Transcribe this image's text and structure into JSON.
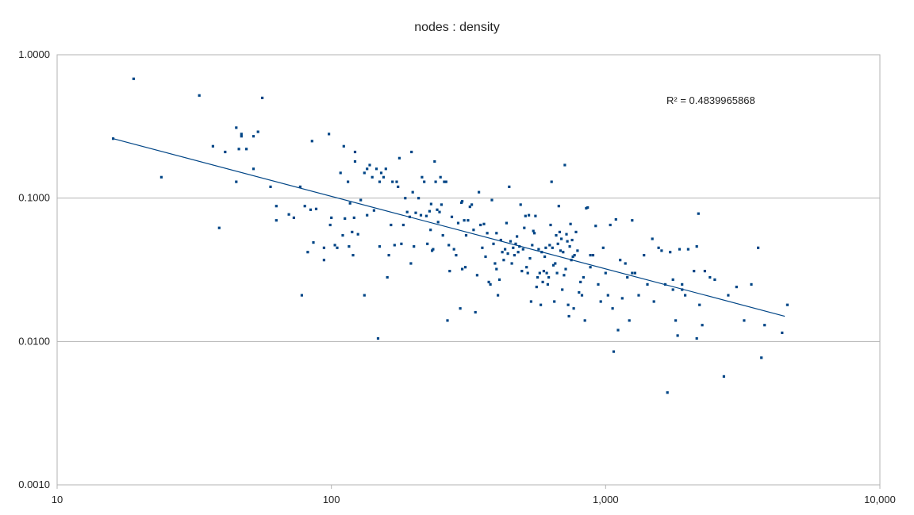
{
  "chart_data": {
    "type": "scatter",
    "title": "nodes : density",
    "xlabel": "",
    "ylabel": "",
    "x_scale": "log",
    "y_scale": "log",
    "xlim": [
      10,
      10000
    ],
    "ylim": [
      0.001,
      1
    ],
    "x_ticks": [
      "10",
      "100",
      "1,000",
      "10,000"
    ],
    "y_ticks": [
      "0.0010",
      "0.0100",
      "0.1000",
      "1.0000"
    ],
    "grid": "horizontal major",
    "marker_color": "#004586",
    "trendline": {
      "type": "power",
      "from": [
        16,
        0.26
      ],
      "to": [
        4500,
        0.015
      ],
      "color": "#004586"
    },
    "r_squared_label": "R² = 0.4839965868",
    "points": [
      [
        16,
        0.26
      ],
      [
        19,
        0.68
      ],
      [
        24,
        0.14
      ],
      [
        33,
        0.52
      ],
      [
        37,
        0.23
      ],
      [
        39,
        0.062
      ],
      [
        41,
        0.21
      ],
      [
        45,
        0.31
      ],
      [
        45,
        0.13
      ],
      [
        46,
        0.22
      ],
      [
        47,
        0.28
      ],
      [
        47,
        0.27
      ],
      [
        49,
        0.22
      ],
      [
        52,
        0.16
      ],
      [
        52,
        0.27
      ],
      [
        54,
        0.29
      ],
      [
        56,
        0.5
      ],
      [
        60,
        0.12
      ],
      [
        63,
        0.088
      ],
      [
        63,
        0.07
      ],
      [
        70,
        0.077
      ],
      [
        73,
        0.073
      ],
      [
        77,
        0.12
      ],
      [
        78,
        0.021
      ],
      [
        80,
        0.088
      ],
      [
        82,
        0.042
      ],
      [
        84,
        0.083
      ],
      [
        85,
        0.25
      ],
      [
        86,
        0.049
      ],
      [
        88,
        0.084
      ],
      [
        94,
        0.045
      ],
      [
        94,
        0.037
      ],
      [
        98,
        0.28
      ],
      [
        99,
        0.065
      ],
      [
        100,
        0.073
      ],
      [
        103,
        0.047
      ],
      [
        105,
        0.045
      ],
      [
        108,
        0.15
      ],
      [
        110,
        0.055
      ],
      [
        111,
        0.23
      ],
      [
        112,
        0.072
      ],
      [
        115,
        0.13
      ],
      [
        116,
        0.046
      ],
      [
        117,
        0.092
      ],
      [
        119,
        0.058
      ],
      [
        120,
        0.04
      ],
      [
        121,
        0.073
      ],
      [
        122,
        0.18
      ],
      [
        122,
        0.21
      ],
      [
        125,
        0.056
      ],
      [
        128,
        0.097
      ],
      [
        132,
        0.021
      ],
      [
        132,
        0.15
      ],
      [
        135,
        0.16
      ],
      [
        135,
        0.076
      ],
      [
        138,
        0.17
      ],
      [
        141,
        0.14
      ],
      [
        143,
        0.082
      ],
      [
        146,
        0.16
      ],
      [
        148,
        0.0105
      ],
      [
        150,
        0.13
      ],
      [
        152,
        0.15
      ],
      [
        155,
        0.14
      ],
      [
        158,
        0.16
      ],
      [
        160,
        0.028
      ],
      [
        162,
        0.04
      ],
      [
        165,
        0.065
      ],
      [
        167,
        0.13
      ],
      [
        170,
        0.047
      ],
      [
        173,
        0.13
      ],
      [
        175,
        0.12
      ],
      [
        177,
        0.19
      ],
      [
        180,
        0.048
      ],
      [
        183,
        0.065
      ],
      [
        186,
        0.1
      ],
      [
        189,
        0.08
      ],
      [
        193,
        0.074
      ],
      [
        195,
        0.035
      ],
      [
        196,
        0.21
      ],
      [
        198,
        0.11
      ],
      [
        200,
        0.046
      ],
      [
        203,
        0.079
      ],
      [
        208,
        0.1
      ],
      [
        212,
        0.076
      ],
      [
        214,
        0.14
      ],
      [
        218,
        0.13
      ],
      [
        222,
        0.075
      ],
      [
        224,
        0.048
      ],
      [
        228,
        0.081
      ],
      [
        231,
        0.091
      ],
      [
        233,
        0.043
      ],
      [
        235,
        0.044
      ],
      [
        238,
        0.18
      ],
      [
        240,
        0.13
      ],
      [
        243,
        0.083
      ],
      [
        245,
        0.068
      ],
      [
        248,
        0.08
      ],
      [
        250,
        0.14
      ],
      [
        252,
        0.09
      ],
      [
        255,
        0.055
      ],
      [
        258,
        0.13
      ],
      [
        262,
        0.13
      ],
      [
        265,
        0.014
      ],
      [
        268,
        0.047
      ],
      [
        270,
        0.031
      ],
      [
        275,
        0.074
      ],
      [
        280,
        0.044
      ],
      [
        285,
        0.04
      ],
      [
        290,
        0.067
      ],
      [
        295,
        0.017
      ],
      [
        298,
        0.093
      ],
      [
        300,
        0.095
      ],
      [
        305,
        0.07
      ],
      [
        308,
        0.033
      ],
      [
        310,
        0.055
      ],
      [
        315,
        0.07
      ],
      [
        320,
        0.087
      ],
      [
        325,
        0.09
      ],
      [
        330,
        0.06
      ],
      [
        335,
        0.016
      ],
      [
        340,
        0.029
      ],
      [
        345,
        0.11
      ],
      [
        350,
        0.065
      ],
      [
        355,
        0.045
      ],
      [
        360,
        0.066
      ],
      [
        365,
        0.039
      ],
      [
        370,
        0.057
      ],
      [
        375,
        0.026
      ],
      [
        380,
        0.025
      ],
      [
        385,
        0.097
      ],
      [
        390,
        0.048
      ],
      [
        395,
        0.035
      ],
      [
        400,
        0.057
      ],
      [
        405,
        0.021
      ],
      [
        410,
        0.027
      ],
      [
        415,
        0.051
      ],
      [
        420,
        0.042
      ],
      [
        425,
        0.037
      ],
      [
        430,
        0.044
      ],
      [
        435,
        0.067
      ],
      [
        440,
        0.041
      ],
      [
        445,
        0.12
      ],
      [
        450,
        0.05
      ],
      [
        455,
        0.035
      ],
      [
        460,
        0.045
      ],
      [
        465,
        0.04
      ],
      [
        470,
        0.048
      ],
      [
        475,
        0.054
      ],
      [
        480,
        0.042
      ],
      [
        485,
        0.046
      ],
      [
        490,
        0.09
      ],
      [
        495,
        0.031
      ],
      [
        500,
        0.044
      ],
      [
        505,
        0.062
      ],
      [
        510,
        0.075
      ],
      [
        515,
        0.033
      ],
      [
        520,
        0.03
      ],
      [
        525,
        0.076
      ],
      [
        530,
        0.038
      ],
      [
        535,
        0.019
      ],
      [
        540,
        0.047
      ],
      [
        545,
        0.059
      ],
      [
        550,
        0.057
      ],
      [
        555,
        0.075
      ],
      [
        560,
        0.024
      ],
      [
        565,
        0.028
      ],
      [
        570,
        0.044
      ],
      [
        575,
        0.03
      ],
      [
        580,
        0.018
      ],
      [
        585,
        0.042
      ],
      [
        590,
        0.026
      ],
      [
        595,
        0.031
      ],
      [
        600,
        0.039
      ],
      [
        605,
        0.045
      ],
      [
        610,
        0.03
      ],
      [
        615,
        0.025
      ],
      [
        620,
        0.028
      ],
      [
        625,
        0.047
      ],
      [
        630,
        0.065
      ],
      [
        635,
        0.13
      ],
      [
        640,
        0.045
      ],
      [
        645,
        0.034
      ],
      [
        650,
        0.019
      ],
      [
        655,
        0.035
      ],
      [
        660,
        0.055
      ],
      [
        665,
        0.03
      ],
      [
        670,
        0.048
      ],
      [
        675,
        0.088
      ],
      [
        680,
        0.058
      ],
      [
        685,
        0.043
      ],
      [
        690,
        0.052
      ],
      [
        695,
        0.023
      ],
      [
        700,
        0.042
      ],
      [
        705,
        0.029
      ],
      [
        710,
        0.17
      ],
      [
        715,
        0.032
      ],
      [
        720,
        0.056
      ],
      [
        725,
        0.05
      ],
      [
        730,
        0.018
      ],
      [
        735,
        0.015
      ],
      [
        740,
        0.046
      ],
      [
        745,
        0.066
      ],
      [
        750,
        0.037
      ],
      [
        755,
        0.051
      ],
      [
        760,
        0.039
      ],
      [
        765,
        0.017
      ],
      [
        770,
        0.04
      ],
      [
        780,
        0.058
      ],
      [
        790,
        0.043
      ],
      [
        800,
        0.022
      ],
      [
        810,
        0.026
      ],
      [
        820,
        0.021
      ],
      [
        830,
        0.028
      ],
      [
        840,
        0.014
      ],
      [
        850,
        0.085
      ],
      [
        860,
        0.086
      ],
      [
        880,
        0.033
      ],
      [
        900,
        0.04
      ],
      [
        920,
        0.064
      ],
      [
        940,
        0.025
      ],
      [
        960,
        0.019
      ],
      [
        980,
        0.045
      ],
      [
        1000,
        0.03
      ],
      [
        1020,
        0.021
      ],
      [
        1040,
        0.065
      ],
      [
        1060,
        0.017
      ],
      [
        1070,
        0.0085
      ],
      [
        1090,
        0.071
      ],
      [
        1110,
        0.012
      ],
      [
        1130,
        0.037
      ],
      [
        1150,
        0.02
      ],
      [
        1180,
        0.035
      ],
      [
        1200,
        0.028
      ],
      [
        1220,
        0.014
      ],
      [
        1250,
        0.07
      ],
      [
        1280,
        0.03
      ],
      [
        1320,
        0.021
      ],
      [
        1380,
        0.04
      ],
      [
        1420,
        0.025
      ],
      [
        1480,
        0.052
      ],
      [
        1500,
        0.019
      ],
      [
        1560,
        0.045
      ],
      [
        1600,
        0.043
      ],
      [
        1650,
        0.025
      ],
      [
        1680,
        0.0044
      ],
      [
        1720,
        0.042
      ],
      [
        1760,
        0.023
      ],
      [
        1800,
        0.014
      ],
      [
        1830,
        0.011
      ],
      [
        1860,
        0.044
      ],
      [
        1900,
        0.023
      ],
      [
        1950,
        0.021
      ],
      [
        2000,
        0.044
      ],
      [
        2100,
        0.031
      ],
      [
        2150,
        0.046
      ],
      [
        2200,
        0.018
      ],
      [
        2250,
        0.013
      ],
      [
        2300,
        0.031
      ],
      [
        2400,
        0.028
      ],
      [
        2500,
        0.027
      ],
      [
        2700,
        0.0057
      ],
      [
        2800,
        0.021
      ],
      [
        3000,
        0.024
      ],
      [
        3200,
        0.014
      ],
      [
        3400,
        0.025
      ],
      [
        3600,
        0.045
      ],
      [
        3700,
        0.0077
      ],
      [
        3800,
        0.013
      ],
      [
        4400,
        0.0115
      ],
      [
        4600,
        0.018
      ],
      [
        2150,
        0.0105
      ],
      [
        2180,
        0.078
      ],
      [
        1760,
        0.027
      ],
      [
        1900,
        0.025
      ],
      [
        880,
        0.04
      ],
      [
        1250,
        0.03
      ],
      [
        400,
        0.032
      ],
      [
        300,
        0.032
      ],
      [
        150,
        0.046
      ],
      [
        230,
        0.06
      ]
    ]
  }
}
